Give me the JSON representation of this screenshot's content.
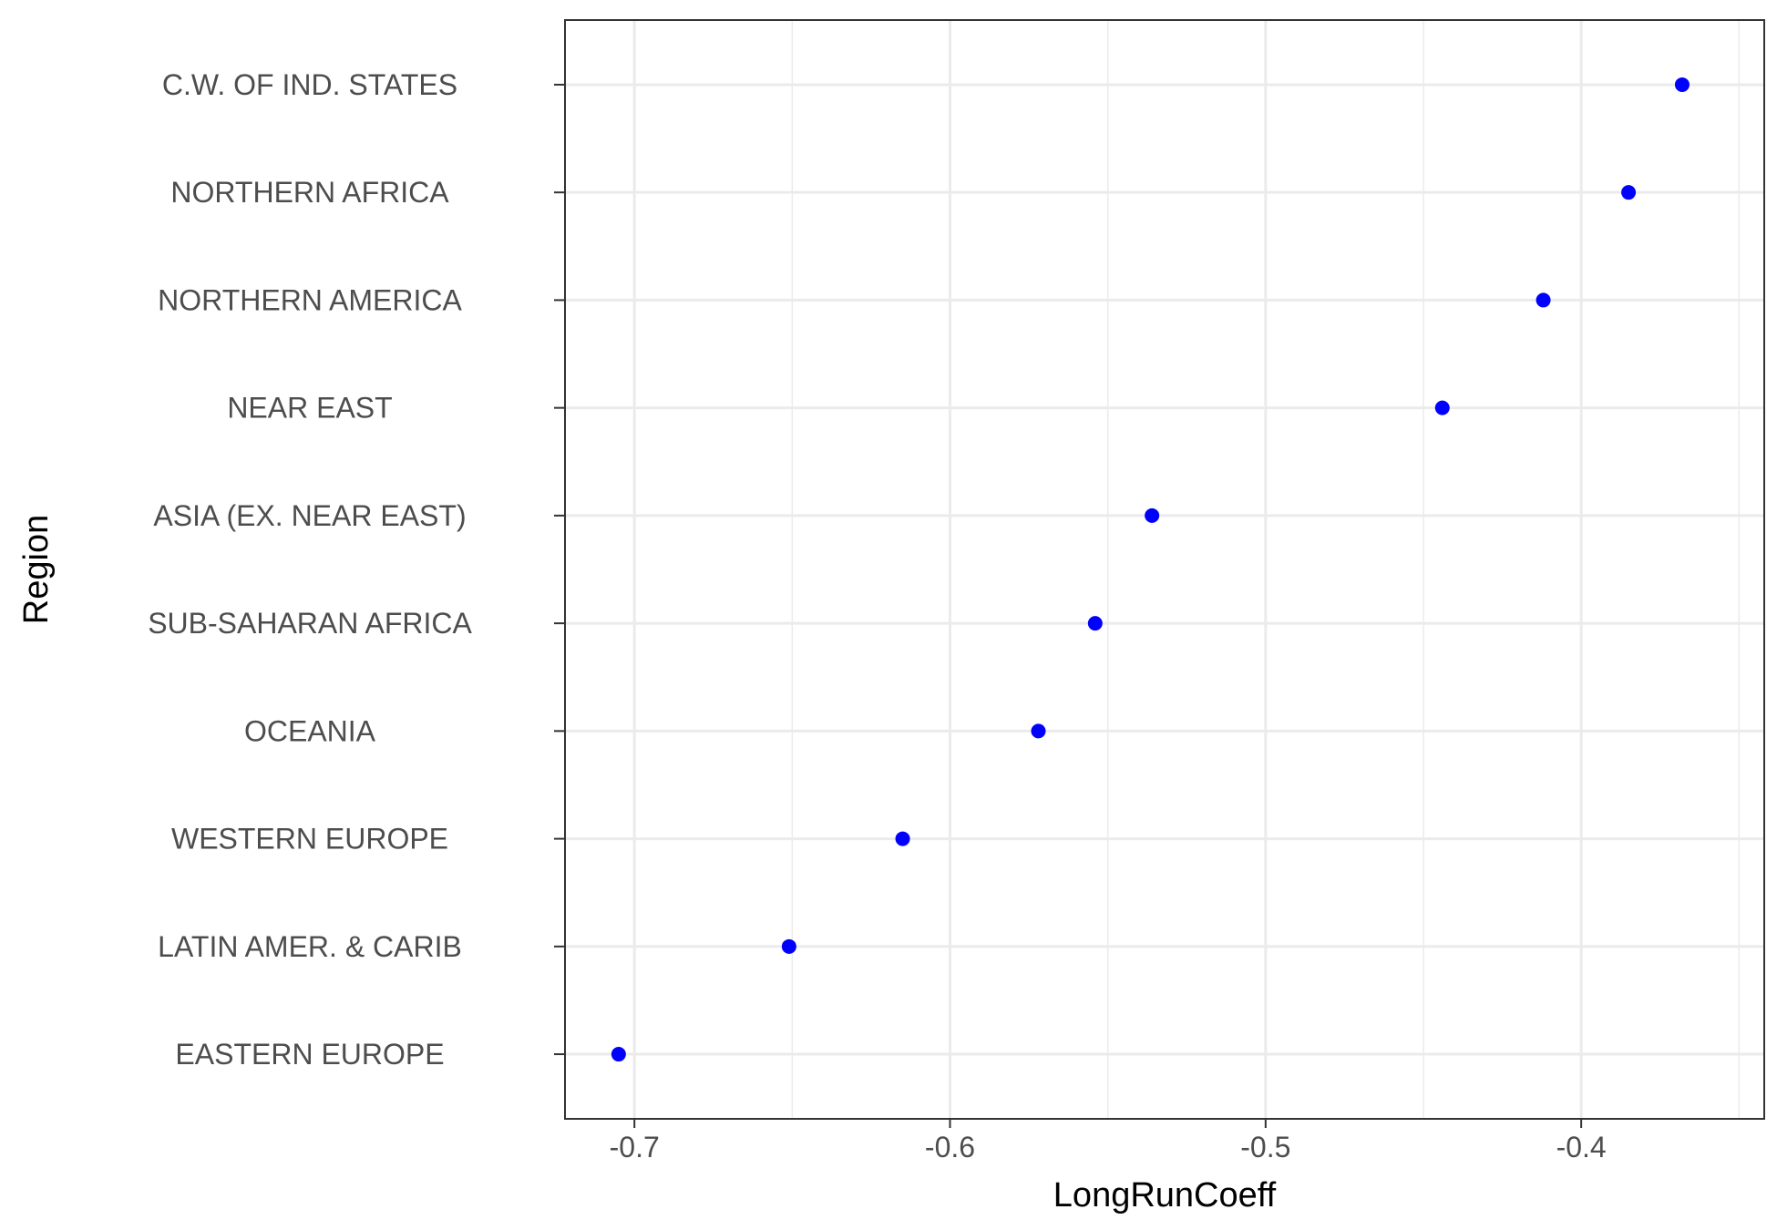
{
  "chart_data": {
    "type": "scatter",
    "xlabel": "LongRunCoeff",
    "ylabel": "Region",
    "xlim": [
      -0.722,
      -0.342
    ],
    "x_ticks": [
      -0.7,
      -0.6,
      -0.5,
      -0.4
    ],
    "x_tick_labels": [
      "-0.7",
      "-0.6",
      "-0.5",
      "-0.4"
    ],
    "grid": true,
    "point_color": "#0000ff",
    "categories": [
      "C.W. OF IND. STATES",
      "NORTHERN AFRICA",
      "NORTHERN AMERICA",
      "NEAR EAST",
      "ASIA (EX. NEAR EAST)",
      "SUB-SAHARAN AFRICA",
      "OCEANIA",
      "WESTERN EUROPE",
      "LATIN AMER. & CARIB",
      "EASTERN EUROPE"
    ],
    "values": [
      -0.368,
      -0.385,
      -0.412,
      -0.444,
      -0.536,
      -0.554,
      -0.572,
      -0.615,
      -0.651,
      -0.705
    ]
  }
}
